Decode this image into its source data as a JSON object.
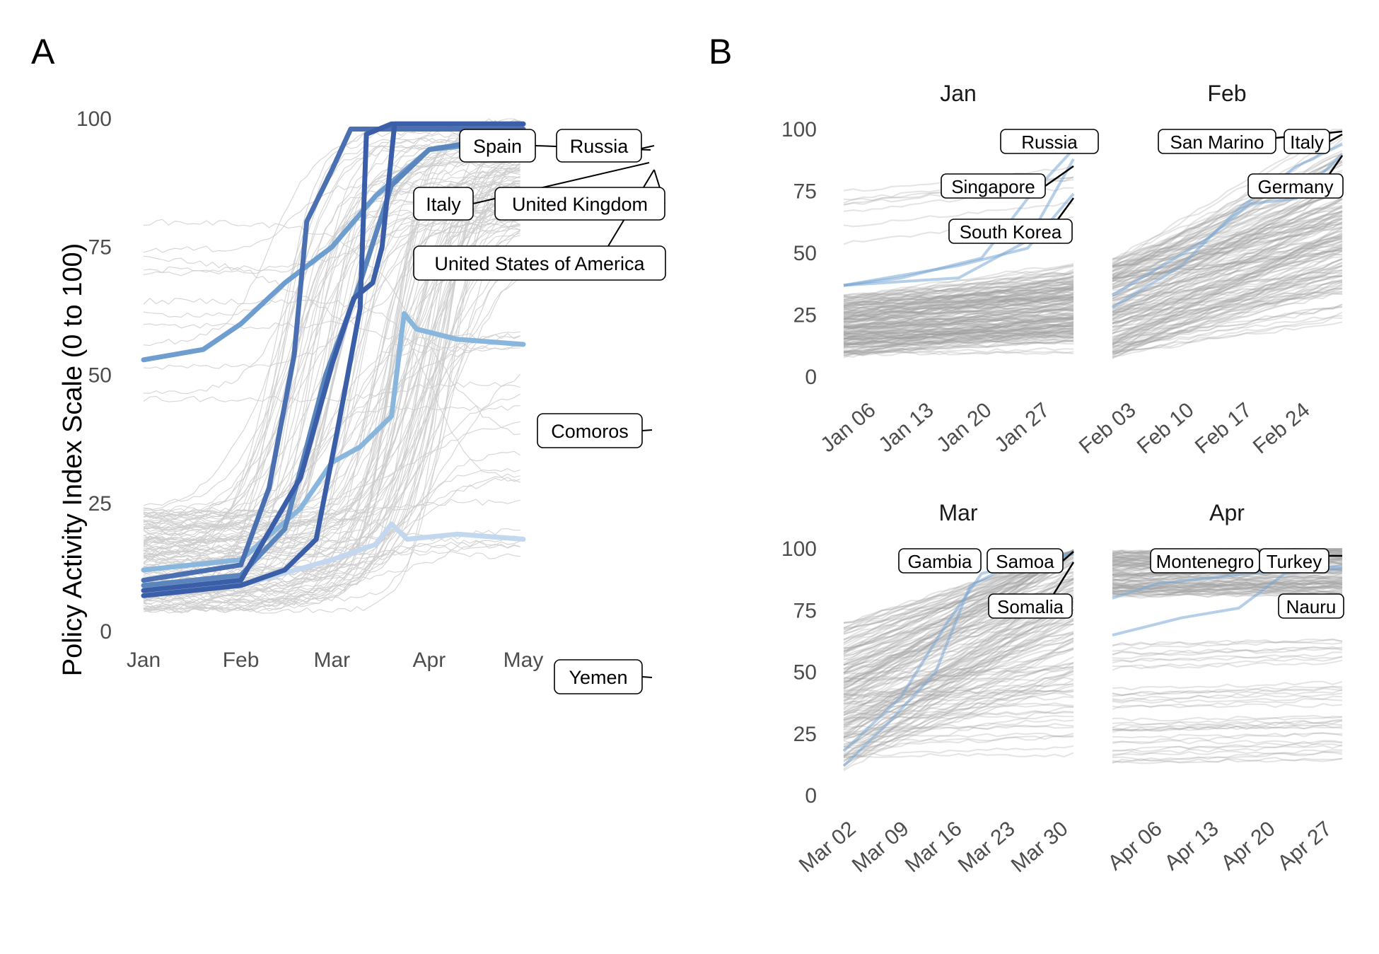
{
  "panel_letters": [
    "A",
    "B"
  ],
  "chart_data": [
    {
      "type": "line",
      "panel": "A",
      "ylabel": "Policy Activity Index Scale (0 to 100)",
      "xlabel": "",
      "title": "",
      "ylim": [
        0,
        100
      ],
      "yticks": [
        "0",
        "25",
        "50",
        "75",
        "100"
      ],
      "xlim": [
        "2020-01-01",
        "2020-05-01"
      ],
      "xticks": [
        {
          "label": "Jan",
          "date": "2020-01-01"
        },
        {
          "label": "Feb",
          "date": "2020-02-01"
        },
        {
          "label": "Mar",
          "date": "2020-03-01"
        },
        {
          "label": "Apr",
          "date": "2020-04-01"
        },
        {
          "label": "May",
          "date": "2020-05-01"
        }
      ],
      "background_series_color": "#cccccc",
      "grid": false,
      "legend": "none",
      "highlighted_series": [
        {
          "name": "Spain",
          "color": "#3b5ea8",
          "points": [
            [
              "2020-01-01",
              7
            ],
            [
              "2020-02-01",
              9
            ],
            [
              "2020-02-15",
              12
            ],
            [
              "2020-02-25",
              18
            ],
            [
              "2020-03-03",
              40
            ],
            [
              "2020-03-10",
              63
            ],
            [
              "2020-03-11",
              80
            ],
            [
              "2020-03-12",
              97
            ],
            [
              "2020-03-20",
              99
            ],
            [
              "2020-05-01",
              99
            ]
          ]
        },
        {
          "name": "Russia",
          "color": "#3b5ea8",
          "points": [
            [
              "2020-01-01",
              8
            ],
            [
              "2020-02-01",
              10
            ],
            [
              "2020-02-20",
              30
            ],
            [
              "2020-03-01",
              52
            ],
            [
              "2020-03-08",
              65
            ],
            [
              "2020-03-14",
              68
            ],
            [
              "2020-03-17",
              75
            ],
            [
              "2020-03-21",
              99
            ],
            [
              "2020-05-01",
              99
            ]
          ]
        },
        {
          "name": "Italy",
          "color": "#4a70b2",
          "points": [
            [
              "2020-01-01",
              10
            ],
            [
              "2020-02-01",
              13
            ],
            [
              "2020-02-10",
              28
            ],
            [
              "2020-02-18",
              54
            ],
            [
              "2020-02-22",
              80
            ],
            [
              "2020-03-01",
              90
            ],
            [
              "2020-03-07",
              98
            ],
            [
              "2020-05-01",
              98
            ]
          ]
        },
        {
          "name": "United Kingdom",
          "color": "#5b86bd",
          "points": [
            [
              "2020-01-01",
              9
            ],
            [
              "2020-02-01",
              11
            ],
            [
              "2020-02-15",
              20
            ],
            [
              "2020-02-28",
              50
            ],
            [
              "2020-03-10",
              68
            ],
            [
              "2020-03-20",
              87
            ],
            [
              "2020-04-01",
              94
            ],
            [
              "2020-05-01",
              97
            ]
          ]
        },
        {
          "name": "United States of America",
          "color": "#6d9ecf",
          "points": [
            [
              "2020-01-01",
              53
            ],
            [
              "2020-01-20",
              55
            ],
            [
              "2020-02-01",
              60
            ],
            [
              "2020-02-15",
              68
            ],
            [
              "2020-03-01",
              75
            ],
            [
              "2020-03-15",
              85
            ],
            [
              "2020-04-01",
              94
            ],
            [
              "2020-05-01",
              96
            ]
          ]
        },
        {
          "name": "Comoros",
          "color": "#89b6dc",
          "points": [
            [
              "2020-01-01",
              12
            ],
            [
              "2020-02-01",
              14
            ],
            [
              "2020-02-20",
              24
            ],
            [
              "2020-03-01",
              33
            ],
            [
              "2020-03-10",
              36
            ],
            [
              "2020-03-20",
              42
            ],
            [
              "2020-03-24",
              62
            ],
            [
              "2020-03-28",
              59
            ],
            [
              "2020-04-10",
              57
            ],
            [
              "2020-05-01",
              56
            ]
          ]
        },
        {
          "name": "Yemen",
          "color": "#c3d8ef",
          "points": [
            [
              "2020-01-01",
              8
            ],
            [
              "2020-02-01",
              9
            ],
            [
              "2020-03-01",
              14
            ],
            [
              "2020-03-15",
              17
            ],
            [
              "2020-03-20",
              21
            ],
            [
              "2020-03-25",
              18
            ],
            [
              "2020-04-10",
              19
            ],
            [
              "2020-05-01",
              18
            ]
          ]
        }
      ]
    },
    {
      "type": "line",
      "panel": "B",
      "facet": "Jan",
      "ylim": [
        0,
        100
      ],
      "yticks": [
        "0",
        "25",
        "50",
        "75",
        "100"
      ],
      "xlim": [
        "2020-01-01",
        "2020-01-27"
      ],
      "xticks": [
        "Jan 06",
        "Jan 13",
        "Jan 20",
        "Jan 27"
      ],
      "labels": [
        "Russia",
        "Singapore",
        "South Korea"
      ]
    },
    {
      "type": "line",
      "panel": "B",
      "facet": "Feb",
      "ylim": [
        0,
        100
      ],
      "yticks": [
        "0",
        "25",
        "50",
        "75",
        "100"
      ],
      "xlim": [
        "2020-01-28",
        "2020-02-24"
      ],
      "xticks": [
        "Feb 03",
        "Feb 10",
        "Feb 17",
        "Feb 24"
      ],
      "labels": [
        "San Marino",
        "Italy",
        "Germany"
      ]
    },
    {
      "type": "line",
      "panel": "B",
      "facet": "Mar",
      "ylim": [
        0,
        100
      ],
      "yticks": [
        "0",
        "25",
        "50",
        "75",
        "100"
      ],
      "xlim": [
        "2020-02-25",
        "2020-03-30"
      ],
      "xticks": [
        "Mar 02",
        "Mar 09",
        "Mar 16",
        "Mar 23",
        "Mar 30"
      ],
      "labels": [
        "Gambia",
        "Samoa",
        "Somalia"
      ]
    },
    {
      "type": "line",
      "panel": "B",
      "facet": "Apr",
      "ylim": [
        0,
        100
      ],
      "yticks": [
        "0",
        "25",
        "50",
        "75",
        "100"
      ],
      "xlim": [
        "2020-03-31",
        "2020-04-27"
      ],
      "xticks": [
        "Apr 06",
        "Apr 13",
        "Apr 20",
        "Apr 27"
      ],
      "labels": [
        "Montenegro",
        "Turkey",
        "Nauru"
      ]
    }
  ]
}
